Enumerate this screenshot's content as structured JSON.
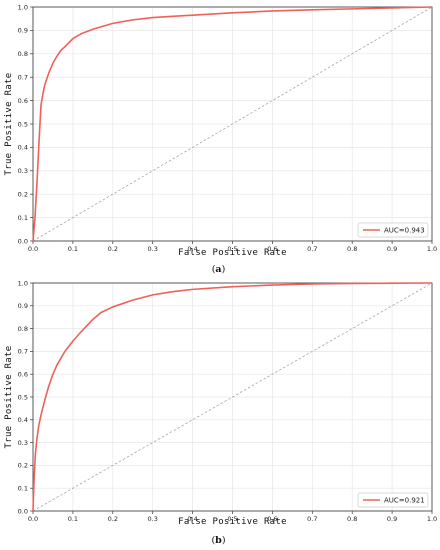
{
  "colors": {
    "roc": "#f0605a",
    "diag": "#9a9a9a",
    "grid": "#e6e6e6",
    "axis": "#333333"
  },
  "chart_data": [
    {
      "type": "line",
      "panel_label": "a",
      "xlabel": "False Positive Rate",
      "ylabel": "True Positive Rate",
      "xlim": [
        0,
        1
      ],
      "ylim": [
        0,
        1
      ],
      "xticks": [
        "0.0",
        "0.1",
        "0.2",
        "0.3",
        "0.4",
        "0.5",
        "0.6",
        "0.7",
        "0.8",
        "0.9",
        "1.0"
      ],
      "yticks": [
        "0.0",
        "0.1",
        "0.2",
        "0.3",
        "0.4",
        "0.5",
        "0.6",
        "0.7",
        "0.8",
        "0.9",
        "1.0"
      ],
      "grid": true,
      "legend": "bottom-right",
      "series": [
        {
          "name": "AUC=0.943",
          "style": "solid",
          "x": [
            0.0,
            0.005,
            0.01,
            0.015,
            0.02,
            0.025,
            0.03,
            0.04,
            0.05,
            0.06,
            0.07,
            0.08,
            0.1,
            0.12,
            0.15,
            0.2,
            0.25,
            0.3,
            0.35,
            0.4,
            0.5,
            0.6,
            0.7,
            0.8,
            0.9,
            1.0
          ],
          "y": [
            0.0,
            0.1,
            0.25,
            0.42,
            0.58,
            0.63,
            0.67,
            0.72,
            0.76,
            0.79,
            0.815,
            0.83,
            0.865,
            0.885,
            0.905,
            0.93,
            0.945,
            0.955,
            0.96,
            0.965,
            0.975,
            0.983,
            0.988,
            0.992,
            0.996,
            1.0
          ]
        },
        {
          "name": "",
          "style": "dashed",
          "x": [
            0,
            1
          ],
          "y": [
            0,
            1
          ]
        }
      ]
    },
    {
      "type": "line",
      "panel_label": "b",
      "xlabel": "False Positive Rate",
      "ylabel": "True Positive Rate",
      "xlim": [
        0,
        1
      ],
      "ylim": [
        0,
        1
      ],
      "xticks": [
        "0.0",
        "0.1",
        "0.2",
        "0.3",
        "0.4",
        "0.5",
        "0.6",
        "0.7",
        "0.8",
        "0.9",
        "1.0"
      ],
      "yticks": [
        "0.0",
        "0.1",
        "0.2",
        "0.3",
        "0.4",
        "0.5",
        "0.6",
        "0.7",
        "0.8",
        "0.9",
        "1.0"
      ],
      "grid": true,
      "legend": "bottom-right",
      "series": [
        {
          "name": "AUC=0.921",
          "style": "solid",
          "x": [
            0.0,
            0.003,
            0.006,
            0.01,
            0.015,
            0.02,
            0.03,
            0.04,
            0.05,
            0.06,
            0.08,
            0.1,
            0.12,
            0.15,
            0.17,
            0.2,
            0.25,
            0.3,
            0.35,
            0.4,
            0.5,
            0.6,
            0.7,
            0.8,
            0.9,
            1.0
          ],
          "y": [
            0.0,
            0.15,
            0.25,
            0.32,
            0.38,
            0.42,
            0.49,
            0.55,
            0.6,
            0.64,
            0.7,
            0.745,
            0.785,
            0.84,
            0.87,
            0.895,
            0.925,
            0.948,
            0.962,
            0.972,
            0.984,
            0.991,
            0.996,
            0.998,
            0.999,
            1.0
          ]
        },
        {
          "name": "",
          "style": "dashed",
          "x": [
            0,
            1
          ],
          "y": [
            0,
            1
          ]
        }
      ]
    }
  ]
}
